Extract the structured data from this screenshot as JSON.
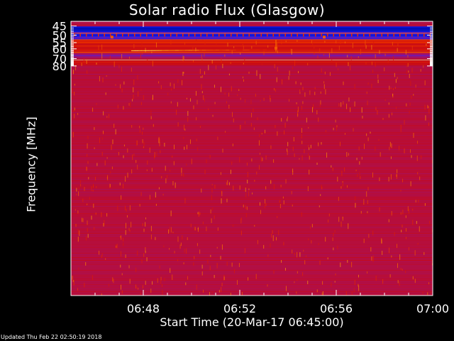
{
  "chart_data": {
    "type": "heatmap",
    "title": "Solar radio Flux (Glasgow)",
    "ylabel": "Frequency [MHz]",
    "xlabel": "Start Time (20-Mar-17 06:45:00)",
    "x_range": [
      "06:45",
      "07:00"
    ],
    "y_range": [
      45,
      80
    ],
    "y_ticks": [
      45,
      50,
      55,
      60,
      70,
      80
    ],
    "x_ticks": [
      {
        "label": "06:48",
        "minutes_after_start": 3
      },
      {
        "label": "06:52",
        "minutes_after_start": 7
      },
      {
        "label": "06:56",
        "minutes_after_start": 11
      },
      {
        "label": "07:00",
        "minutes_after_start": 15
      }
    ],
    "colors": {
      "low": "#1a0080",
      "background": "#000000",
      "high": "#ffffaa"
    },
    "bands": [
      {
        "f_start": 45.0,
        "f_end": 45.3,
        "level": 0.3
      },
      {
        "f_start": 45.3,
        "f_end": 47.5,
        "level": 0.1
      },
      {
        "f_start": 47.5,
        "f_end": 48.3,
        "level": 0.14
      },
      {
        "f_start": 48.3,
        "f_end": 48.7,
        "level": 0.35
      },
      {
        "f_start": 48.7,
        "f_end": 49.0,
        "level": 0.95
      },
      {
        "f_start": 49.0,
        "f_end": 49.2,
        "level": 0.45
      },
      {
        "f_start": 49.2,
        "f_end": 50.4,
        "level": 0.16
      },
      {
        "f_start": 50.4,
        "f_end": 51.2,
        "level": 0.22
      },
      {
        "f_start": 51.2,
        "f_end": 51.9,
        "level": 0.3
      },
      {
        "f_start": 51.9,
        "f_end": 52.3,
        "level": 0.18
      },
      {
        "f_start": 52.3,
        "f_end": 52.8,
        "level": 0.32
      },
      {
        "f_start": 52.8,
        "f_end": 53.1,
        "level": 0.7
      },
      {
        "f_start": 53.1,
        "f_end": 54.0,
        "level": 0.55
      },
      {
        "f_start": 54.0,
        "f_end": 55.5,
        "level": 0.62
      },
      {
        "f_start": 55.5,
        "f_end": 57.0,
        "level": 0.52
      },
      {
        "f_start": 57.0,
        "f_end": 58.5,
        "level": 0.56
      },
      {
        "f_start": 58.5,
        "f_end": 60.5,
        "level": 0.5
      },
      {
        "f_start": 60.5,
        "f_end": 62.2,
        "level": 0.54
      },
      {
        "f_start": 62.2,
        "f_end": 62.7,
        "level": 0.45
      },
      {
        "f_start": 62.7,
        "f_end": 63.5,
        "level": 0.66
      },
      {
        "f_start": 63.5,
        "f_end": 64.0,
        "level": 0.42
      },
      {
        "f_start": 64.0,
        "f_end": 65.5,
        "level": 0.4
      },
      {
        "f_start": 65.5,
        "f_end": 67.5,
        "level": 0.33
      },
      {
        "f_start": 67.5,
        "f_end": 69.5,
        "level": 0.4
      },
      {
        "f_start": 69.5,
        "f_end": 71.2,
        "level": 0.44
      },
      {
        "f_start": 71.2,
        "f_end": 71.8,
        "level": 0.97
      },
      {
        "f_start": 71.8,
        "f_end": 73.0,
        "level": 0.48
      },
      {
        "f_start": 73.0,
        "f_end": 76.0,
        "level": 0.55
      },
      {
        "f_start": 76.0,
        "f_end": 78.5,
        "level": 0.5
      },
      {
        "f_start": 78.5,
        "f_end": 80.0,
        "level": 0.47
      }
    ],
    "burst": {
      "freq_start_mhz": 61.6,
      "freq_end_mhz": 60.8,
      "time_start_min": 2.5,
      "time_end_min": 8.1,
      "level": 0.92
    },
    "spots": [
      {
        "time_min": 1.7,
        "freq_mhz": 51.2
      },
      {
        "time_min": 10.5,
        "freq_mhz": 51.2
      },
      {
        "time_min": 8.5,
        "freq_mhz": 59.4
      }
    ],
    "interference_line": {
      "time_min": 8.5,
      "level": 0.7
    }
  },
  "footer": {
    "updated": "Updated Thu Feb 22 02:50:19 2018"
  }
}
